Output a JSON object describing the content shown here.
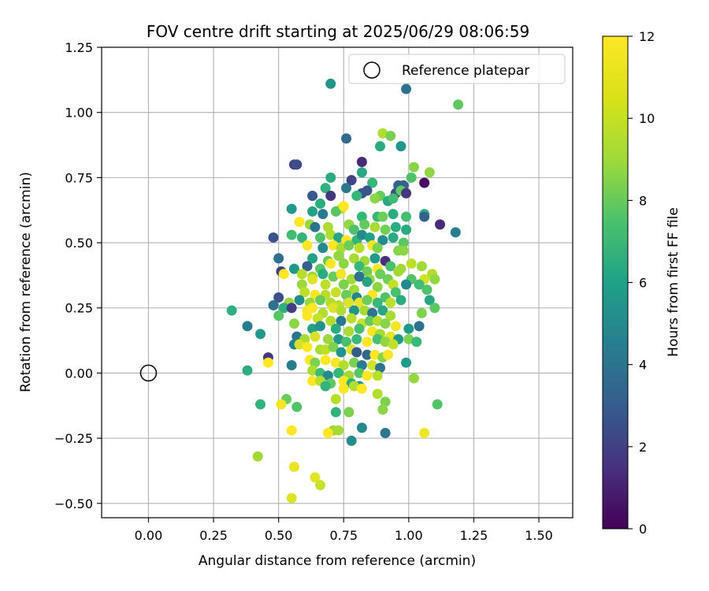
{
  "chart_data": {
    "type": "scatter",
    "title": "FOV centre drift starting at 2025/06/29 08:06:59",
    "xlabel": "Angular distance from reference (arcmin)",
    "ylabel": "Rotation from reference (arcmin)",
    "xlim": [
      -0.18,
      1.63
    ],
    "ylim": [
      -0.555,
      1.25
    ],
    "xticks": [
      0.0,
      0.25,
      0.5,
      0.75,
      1.0,
      1.25,
      1.5
    ],
    "xtick_labels": [
      "0.00",
      "0.25",
      "0.50",
      "0.75",
      "1.00",
      "1.25",
      "1.50"
    ],
    "yticks": [
      -0.5,
      -0.25,
      0.0,
      0.25,
      0.5,
      0.75,
      1.0,
      1.25
    ],
    "ytick_labels": [
      "−0.50",
      "−0.25",
      "0.00",
      "0.25",
      "0.50",
      "0.75",
      "1.00",
      "1.25"
    ],
    "grid": true,
    "legend": {
      "placement": "top-right",
      "entries": [
        "Reference platepar"
      ]
    },
    "colorbar": {
      "label": "Hours from first FF file",
      "range": [
        0,
        12
      ],
      "ticks": [
        0,
        2,
        4,
        6,
        8,
        10,
        12
      ],
      "tick_labels": [
        "0",
        "2",
        "4",
        "6",
        "8",
        "10",
        "12"
      ],
      "colormap": "viridis"
    },
    "reference_point": {
      "x": 0.0,
      "y": 0.0
    },
    "points": [
      [
        0.7,
        1.11,
        6.2
      ],
      [
        0.99,
        1.09,
        4.6
      ],
      [
        1.19,
        1.03,
        9.0
      ],
      [
        0.76,
        0.9,
        4.0
      ],
      [
        0.9,
        0.92,
        10.6
      ],
      [
        0.93,
        0.91,
        9.5
      ],
      [
        0.89,
        0.87,
        7.3
      ],
      [
        0.97,
        0.87,
        6.3
      ],
      [
        0.56,
        0.8,
        2.3
      ],
      [
        0.57,
        0.8,
        2.8
      ],
      [
        0.82,
        0.81,
        1.4
      ],
      [
        1.02,
        0.79,
        9.8
      ],
      [
        1.08,
        0.77,
        10.0
      ],
      [
        0.7,
        0.75,
        7.4
      ],
      [
        0.82,
        0.77,
        7.2
      ],
      [
        1.01,
        0.75,
        8.6
      ],
      [
        0.78,
        0.74,
        2.4
      ],
      [
        0.86,
        0.73,
        8.0
      ],
      [
        0.96,
        0.72,
        3.7
      ],
      [
        0.98,
        0.72,
        3.7
      ],
      [
        1.06,
        0.73,
        0.5
      ],
      [
        0.68,
        0.71,
        7.7
      ],
      [
        0.76,
        0.71,
        4.8
      ],
      [
        0.82,
        0.69,
        3.2
      ],
      [
        0.84,
        0.7,
        3.2
      ],
      [
        0.89,
        0.68,
        9.2
      ],
      [
        0.95,
        0.69,
        3.0
      ],
      [
        0.97,
        0.7,
        9.0
      ],
      [
        0.99,
        0.69,
        1.8
      ],
      [
        0.63,
        0.68,
        3.3
      ],
      [
        0.7,
        0.68,
        1.9
      ],
      [
        0.8,
        0.68,
        8.0
      ],
      [
        0.87,
        0.67,
        9.9
      ],
      [
        0.92,
        0.66,
        7.2
      ],
      [
        0.94,
        0.67,
        8.3
      ],
      [
        0.66,
        0.65,
        7.4
      ],
      [
        0.74,
        0.63,
        10.9
      ],
      [
        0.55,
        0.63,
        6.4
      ],
      [
        0.63,
        0.62,
        6.9
      ],
      [
        0.67,
        0.61,
        5.0
      ],
      [
        0.72,
        0.62,
        8.8
      ],
      [
        0.75,
        0.64,
        12.0
      ],
      [
        0.82,
        0.6,
        8.0
      ],
      [
        0.88,
        0.6,
        8.0
      ],
      [
        0.9,
        0.6,
        9.3
      ],
      [
        0.94,
        0.61,
        7.4
      ],
      [
        0.99,
        0.6,
        8.4
      ],
      [
        1.06,
        0.61,
        7.5
      ],
      [
        1.06,
        0.6,
        3.8
      ],
      [
        1.12,
        0.57,
        1.5
      ],
      [
        1.18,
        0.54,
        5.2
      ],
      [
        0.48,
        0.52,
        3.1
      ],
      [
        0.55,
        0.53,
        8.3
      ],
      [
        0.58,
        0.58,
        12.0
      ],
      [
        0.62,
        0.57,
        10.2
      ],
      [
        0.64,
        0.56,
        4.6
      ],
      [
        0.69,
        0.56,
        10.5
      ],
      [
        0.77,
        0.57,
        10.0
      ],
      [
        0.79,
        0.55,
        8.6
      ],
      [
        0.83,
        0.57,
        9.1
      ],
      [
        0.87,
        0.56,
        10.4
      ],
      [
        0.91,
        0.55,
        9.4
      ],
      [
        0.95,
        0.56,
        7.4
      ],
      [
        0.99,
        0.55,
        7.3
      ],
      [
        0.59,
        0.52,
        7.9
      ],
      [
        0.66,
        0.52,
        8.6
      ],
      [
        0.7,
        0.53,
        10.6
      ],
      [
        0.73,
        0.52,
        7.1
      ],
      [
        0.76,
        0.51,
        12.0
      ],
      [
        0.8,
        0.51,
        7.9
      ],
      [
        0.82,
        0.53,
        5.8
      ],
      [
        0.85,
        0.52,
        6.7
      ],
      [
        0.9,
        0.51,
        5.8
      ],
      [
        0.94,
        0.52,
        7.3
      ],
      [
        0.98,
        0.5,
        8.9
      ],
      [
        0.61,
        0.49,
        12.0
      ],
      [
        0.67,
        0.48,
        5.7
      ],
      [
        0.71,
        0.49,
        12.0
      ],
      [
        0.74,
        0.48,
        10.5
      ],
      [
        0.77,
        0.49,
        9.3
      ],
      [
        0.81,
        0.48,
        10.7
      ],
      [
        0.86,
        0.49,
        12.0
      ],
      [
        0.88,
        0.48,
        9.6
      ],
      [
        0.96,
        0.47,
        9.8
      ],
      [
        0.98,
        0.47,
        9.9
      ],
      [
        0.5,
        0.44,
        4.4
      ],
      [
        0.63,
        0.44,
        6.9
      ],
      [
        0.69,
        0.43,
        9.1
      ],
      [
        0.73,
        0.45,
        10.0
      ],
      [
        0.79,
        0.44,
        10.4
      ],
      [
        0.83,
        0.43,
        10.3
      ],
      [
        0.87,
        0.44,
        6.5
      ],
      [
        0.91,
        0.43,
        1.6
      ],
      [
        0.56,
        0.4,
        6.4
      ],
      [
        0.61,
        0.41,
        3.6
      ],
      [
        0.66,
        0.4,
        8.9
      ],
      [
        0.7,
        0.42,
        12.0
      ],
      [
        0.75,
        0.42,
        9.9
      ],
      [
        0.81,
        0.41,
        8.1
      ],
      [
        0.84,
        0.39,
        9.3
      ],
      [
        0.88,
        0.4,
        12.0
      ],
      [
        0.93,
        0.41,
        8.5
      ],
      [
        0.97,
        0.4,
        10.3
      ],
      [
        1.01,
        0.42,
        10.8
      ],
      [
        1.05,
        0.41,
        10.3
      ],
      [
        1.09,
        0.38,
        10.6
      ],
      [
        0.51,
        0.39,
        2.3
      ],
      [
        0.52,
        0.38,
        12.0
      ],
      [
        0.59,
        0.38,
        10.7
      ],
      [
        0.63,
        0.37,
        10.2
      ],
      [
        0.67,
        0.38,
        7.4
      ],
      [
        0.71,
        0.37,
        9.2
      ],
      [
        0.74,
        0.38,
        11.8
      ],
      [
        0.78,
        0.36,
        10.3
      ],
      [
        0.81,
        0.37,
        4.5
      ],
      [
        0.85,
        0.36,
        10.1
      ],
      [
        0.89,
        0.38,
        9.3
      ],
      [
        0.92,
        0.36,
        9.3
      ],
      [
        0.96,
        0.39,
        10.3
      ],
      [
        1.01,
        0.36,
        8.7
      ],
      [
        1.06,
        0.36,
        11.2
      ],
      [
        1.1,
        0.36,
        10.0
      ],
      [
        0.59,
        0.34,
        10.2
      ],
      [
        0.63,
        0.36,
        11.4
      ],
      [
        0.68,
        0.34,
        10.8
      ],
      [
        0.75,
        0.34,
        9.6
      ],
      [
        0.79,
        0.32,
        10.3
      ],
      [
        0.84,
        0.35,
        7.0
      ],
      [
        0.88,
        0.33,
        9.9
      ],
      [
        0.94,
        0.34,
        10.9
      ],
      [
        0.99,
        0.34,
        5.6
      ],
      [
        1.04,
        0.34,
        8.3
      ],
      [
        1.07,
        0.32,
        8.6
      ],
      [
        0.6,
        0.31,
        10.8
      ],
      [
        0.64,
        0.3,
        11.8
      ],
      [
        0.68,
        0.3,
        10.7
      ],
      [
        0.72,
        0.31,
        11.0
      ],
      [
        0.76,
        0.3,
        9.2
      ],
      [
        0.8,
        0.29,
        5.5
      ],
      [
        0.86,
        0.3,
        12.0
      ],
      [
        0.91,
        0.29,
        8.6
      ],
      [
        0.95,
        0.31,
        8.5
      ],
      [
        0.5,
        0.29,
        3.0
      ],
      [
        0.54,
        0.27,
        10.2
      ],
      [
        0.58,
        0.28,
        5.8
      ],
      [
        0.62,
        0.27,
        10.1
      ],
      [
        0.66,
        0.28,
        9.2
      ],
      [
        0.7,
        0.27,
        10.6
      ],
      [
        0.73,
        0.26,
        10.7
      ],
      [
        0.77,
        0.27,
        11.4
      ],
      [
        0.81,
        0.27,
        11.6
      ],
      [
        0.84,
        0.28,
        9.3
      ],
      [
        0.88,
        0.27,
        8.1
      ],
      [
        0.93,
        0.27,
        10.8
      ],
      [
        0.97,
        0.28,
        7.3
      ],
      [
        1.08,
        0.28,
        7.1
      ],
      [
        0.48,
        0.26,
        4.5
      ],
      [
        0.52,
        0.25,
        7.6
      ],
      [
        0.55,
        0.25,
        2.2
      ],
      [
        0.61,
        0.24,
        11.8
      ],
      [
        0.63,
        0.25,
        12.0
      ],
      [
        0.67,
        0.23,
        10.6
      ],
      [
        0.71,
        0.25,
        11.4
      ],
      [
        0.74,
        0.24,
        10.6
      ],
      [
        0.79,
        0.24,
        6.2
      ],
      [
        0.83,
        0.24,
        10.4
      ],
      [
        0.86,
        0.23,
        4.7
      ],
      [
        0.9,
        0.24,
        7.1
      ],
      [
        0.93,
        0.22,
        10.4
      ],
      [
        1.05,
        0.23,
        9.6
      ],
      [
        1.1,
        0.25,
        8.9
      ],
      [
        0.32,
        0.24,
        7.6
      ],
      [
        0.5,
        0.22,
        8.8
      ],
      [
        0.56,
        0.19,
        9.9
      ],
      [
        0.61,
        0.22,
        12.0
      ],
      [
        0.65,
        0.21,
        11.0
      ],
      [
        0.7,
        0.2,
        10.6
      ],
      [
        0.74,
        0.2,
        4.8
      ],
      [
        0.78,
        0.21,
        10.7
      ],
      [
        0.82,
        0.19,
        11.0
      ],
      [
        0.85,
        0.2,
        9.1
      ],
      [
        0.88,
        0.2,
        10.6
      ],
      [
        0.91,
        0.19,
        9.8
      ],
      [
        0.95,
        0.18,
        11.8
      ],
      [
        1.0,
        0.17,
        6.5
      ],
      [
        1.04,
        0.18,
        4.5
      ],
      [
        0.38,
        0.18,
        5.0
      ],
      [
        0.63,
        0.17,
        7.0
      ],
      [
        0.66,
        0.18,
        6.1
      ],
      [
        0.72,
        0.17,
        7.4
      ],
      [
        0.77,
        0.16,
        10.5
      ],
      [
        0.81,
        0.17,
        8.4
      ],
      [
        0.86,
        0.16,
        11.8
      ],
      [
        0.89,
        0.15,
        10.4
      ],
      [
        0.93,
        0.14,
        11.6
      ],
      [
        0.96,
        0.13,
        6.5
      ],
      [
        0.43,
        0.15,
        6.3
      ],
      [
        0.57,
        0.14,
        4.7
      ],
      [
        0.6,
        0.13,
        10.4
      ],
      [
        0.64,
        0.14,
        11.3
      ],
      [
        0.69,
        0.13,
        10.2
      ],
      [
        0.73,
        0.13,
        6.5
      ],
      [
        0.76,
        0.12,
        8.5
      ],
      [
        0.8,
        0.13,
        8.1
      ],
      [
        0.84,
        0.12,
        12.0
      ],
      [
        0.88,
        0.13,
        8.4
      ],
      [
        0.91,
        0.12,
        10.0
      ],
      [
        0.94,
        0.11,
        10.9
      ],
      [
        1.0,
        0.13,
        9.6
      ],
      [
        1.03,
        0.12,
        8.1
      ],
      [
        0.56,
        0.11,
        5.4
      ],
      [
        0.58,
        0.11,
        11.3
      ],
      [
        0.61,
        0.1,
        12.0
      ],
      [
        0.66,
        0.09,
        10.5
      ],
      [
        0.68,
        0.09,
        10.8
      ],
      [
        0.71,
        0.1,
        9.6
      ],
      [
        0.74,
        0.08,
        6.2
      ],
      [
        0.78,
        0.09,
        11.4
      ],
      [
        0.8,
        0.08,
        3.5
      ],
      [
        0.84,
        0.07,
        4.0
      ],
      [
        0.87,
        0.07,
        12.0
      ],
      [
        0.9,
        0.06,
        9.8
      ],
      [
        0.92,
        0.07,
        11.9
      ],
      [
        0.46,
        0.06,
        2.0
      ],
      [
        0.46,
        0.04,
        12.0
      ],
      [
        0.62,
        0.05,
        12.0
      ],
      [
        0.64,
        0.04,
        9.6
      ],
      [
        0.68,
        0.05,
        12.0
      ],
      [
        0.72,
        0.04,
        11.9
      ],
      [
        0.75,
        0.03,
        10.6
      ],
      [
        0.79,
        0.04,
        9.6
      ],
      [
        0.82,
        0.03,
        5.1
      ],
      [
        0.86,
        0.03,
        11.2
      ],
      [
        0.89,
        0.02,
        4.6
      ],
      [
        0.99,
        0.04,
        6.5
      ],
      [
        0.55,
        0.03,
        5.0
      ],
      [
        0.38,
        0.01,
        7.4
      ],
      [
        0.63,
        0.01,
        10.5
      ],
      [
        0.66,
        0.0,
        8.2
      ],
      [
        0.69,
        -0.01,
        5.6
      ],
      [
        0.73,
        0.0,
        8.0
      ],
      [
        0.77,
        -0.01,
        10.3
      ],
      [
        0.81,
        0.0,
        8.8
      ],
      [
        0.84,
        -0.01,
        12.0
      ],
      [
        0.88,
        -0.01,
        10.7
      ],
      [
        1.02,
        -0.02,
        10.1
      ],
      [
        0.63,
        -0.03,
        12.0
      ],
      [
        0.66,
        -0.03,
        10.7
      ],
      [
        0.7,
        -0.04,
        9.0
      ],
      [
        0.75,
        -0.03,
        12.0
      ],
      [
        0.78,
        -0.04,
        7.5
      ],
      [
        0.81,
        -0.05,
        6.3
      ],
      [
        0.68,
        -0.05,
        7.8
      ],
      [
        0.75,
        -0.06,
        12.0
      ],
      [
        0.79,
        -0.05,
        10.6
      ],
      [
        0.82,
        -0.06,
        12.0
      ],
      [
        0.88,
        -0.08,
        10.6
      ],
      [
        0.72,
        -0.1,
        10.7
      ],
      [
        0.53,
        -0.1,
        9.2
      ],
      [
        0.51,
        -0.12,
        11.8
      ],
      [
        0.43,
        -0.12,
        7.8
      ],
      [
        0.57,
        -0.13,
        8.7
      ],
      [
        0.91,
        -0.11,
        9.6
      ],
      [
        1.11,
        -0.12,
        8.7
      ],
      [
        0.72,
        -0.15,
        7.8
      ],
      [
        0.77,
        -0.15,
        9.6
      ],
      [
        0.9,
        -0.14,
        9.9
      ],
      [
        0.82,
        -0.21,
        5.6
      ],
      [
        0.71,
        -0.22,
        10.2
      ],
      [
        0.73,
        -0.22,
        10.4
      ],
      [
        0.55,
        -0.22,
        12.0
      ],
      [
        0.69,
        -0.23,
        12.0
      ],
      [
        0.91,
        -0.23,
        4.7
      ],
      [
        1.06,
        -0.23,
        11.7
      ],
      [
        0.78,
        -0.26,
        5.9
      ],
      [
        0.42,
        -0.32,
        10.3
      ],
      [
        0.56,
        -0.36,
        11.6
      ],
      [
        0.64,
        -0.4,
        11.5
      ],
      [
        0.66,
        -0.43,
        11.0
      ],
      [
        0.55,
        -0.48,
        11.4
      ]
    ]
  }
}
